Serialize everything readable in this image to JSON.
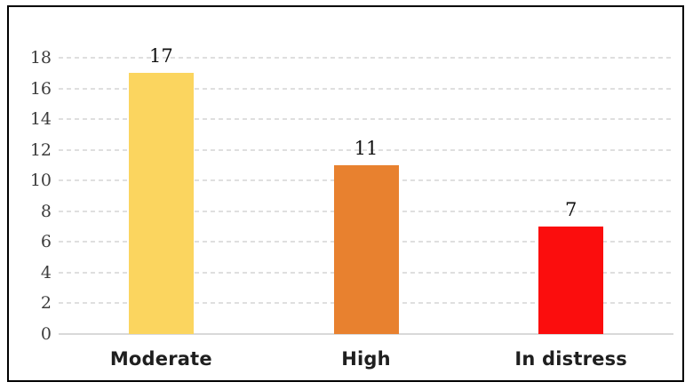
{
  "chart_data": {
    "type": "bar",
    "title": "",
    "xlabel": "",
    "ylabel": "",
    "categories": [
      "Moderate",
      "High",
      "In distress"
    ],
    "values": [
      17,
      11,
      7
    ],
    "data_labels": [
      "17",
      "11",
      "7"
    ],
    "bar_colors": [
      "#FBD55F",
      "#E8812F",
      "#FB0D0D"
    ],
    "ylim": [
      0,
      18
    ],
    "ytick_step": 2,
    "ytick_labels": [
      "0",
      "2",
      "4",
      "6",
      "8",
      "10",
      "12",
      "14",
      "16",
      "18"
    ],
    "grid": "horizontal-dashed",
    "gridline_color": "#DFDFDF",
    "axis_line_color": "#D9D9D9",
    "frame_border_color": "#000000",
    "background_color": "#FFFFFF",
    "legend": "none"
  }
}
